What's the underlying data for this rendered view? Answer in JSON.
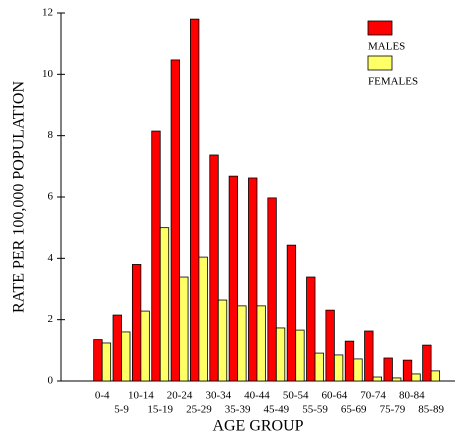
{
  "chart_data": {
    "type": "bar",
    "xlabel": "AGE GROUP",
    "ylabel": "RATE PER 100,000 POPULATION",
    "categories": [
      "0-4",
      "5-9",
      "10-14",
      "15-19",
      "20-24",
      "25-29",
      "30-34",
      "35-39",
      "40-44",
      "45-49",
      "50-54",
      "55-59",
      "60-64",
      "65-69",
      "70-74",
      "75-79",
      "80-84",
      "85-89"
    ],
    "series": [
      {
        "name": "MALES",
        "color": "#ff0000",
        "values": [
          1.35,
          2.15,
          3.8,
          8.15,
          10.47,
          11.8,
          7.37,
          6.68,
          6.62,
          5.97,
          4.43,
          3.39,
          2.31,
          1.3,
          1.63,
          0.75,
          0.68,
          1.17
        ]
      },
      {
        "name": "FEMALES",
        "color": "#ffff66",
        "values": [
          1.24,
          1.6,
          2.28,
          5.0,
          3.39,
          4.04,
          2.64,
          2.45,
          2.45,
          1.73,
          1.66,
          0.91,
          0.85,
          0.72,
          0.13,
          0.1,
          0.23,
          0.33
        ]
      }
    ],
    "ylim": [
      0,
      12
    ],
    "yticks": [
      0,
      2,
      4,
      6,
      8,
      10,
      12
    ],
    "legend": "top-right",
    "grid": false
  }
}
